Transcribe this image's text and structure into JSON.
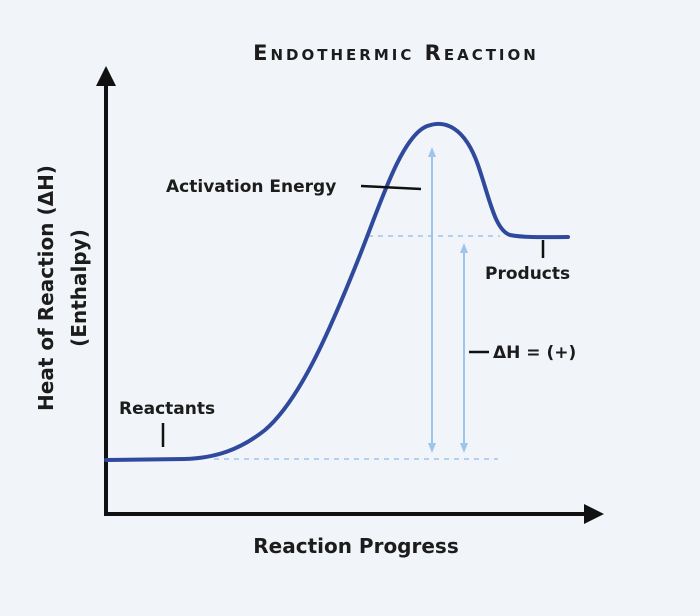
{
  "title": "Endothermic Reaction",
  "axes": {
    "x_label": "Reaction Progress",
    "y_label_line1": "Heat of Reaction (ΔH)",
    "y_label_line2": "(Enthalpy)"
  },
  "labels": {
    "activation_energy": "Activation Energy",
    "products": "Products",
    "reactants": "Reactants",
    "delta_h": "ΔH = (+)"
  },
  "colors": {
    "background": "#f1f4f8",
    "curve": "#2f4a9c",
    "guide": "#9ec3ec",
    "axis": "#111111",
    "text": "#1c1c1c"
  }
}
